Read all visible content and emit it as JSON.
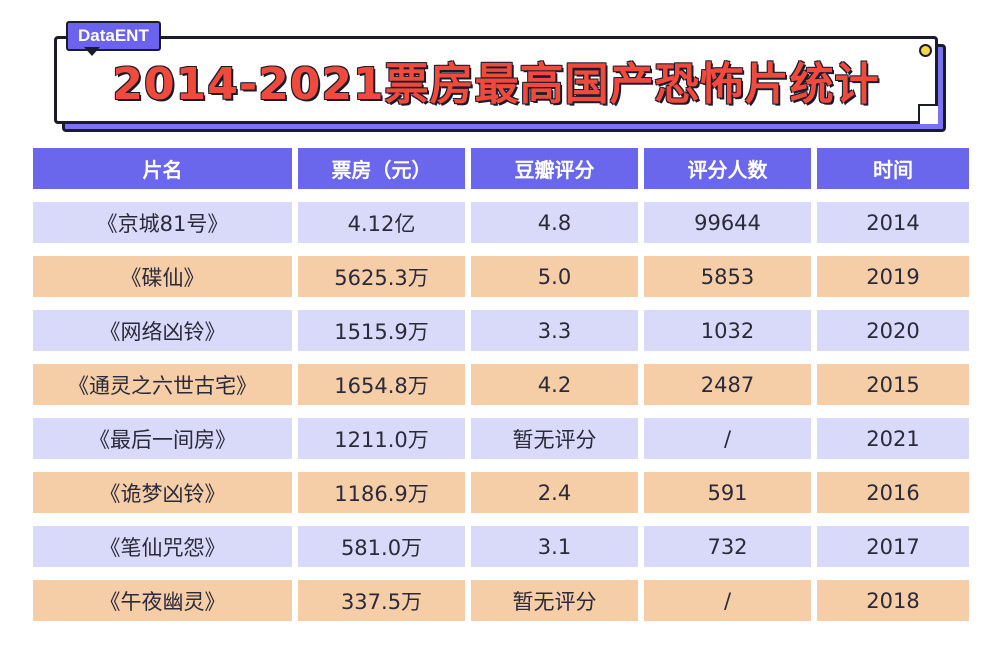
{
  "brand": "DataENT",
  "title": "2014-2021票房最高国产恐怖片统计",
  "colors": {
    "accent": "#6a67ec",
    "title_red": "#ef4a3c",
    "row_blue": "#d9daf9",
    "row_orange": "#f5cda6"
  },
  "table": {
    "headers": [
      "片名",
      "票房（元）",
      "豆瓣评分",
      "评分人数",
      "时间"
    ],
    "rows": [
      [
        "《京城81号》",
        "4.12亿",
        "4.8",
        "99644",
        "2014"
      ],
      [
        "《碟仙》",
        "5625.3万",
        "5.0",
        "5853",
        "2019"
      ],
      [
        "《网络凶铃》",
        "1515.9万",
        "3.3",
        "1032",
        "2020"
      ],
      [
        "《通灵之六世古宅》",
        "1654.8万",
        "4.2",
        "2487",
        "2015"
      ],
      [
        "《最后一间房》",
        "1211.0万",
        "暂无评分",
        "/",
        "2021"
      ],
      [
        "《诡梦凶铃》",
        "1186.9万",
        "2.4",
        "591",
        "2016"
      ],
      [
        "《笔仙咒怨》",
        "581.0万",
        "3.1",
        "732",
        "2017"
      ],
      [
        "《午夜幽灵》",
        "337.5万",
        "暂无评分",
        "/",
        "2018"
      ]
    ]
  }
}
